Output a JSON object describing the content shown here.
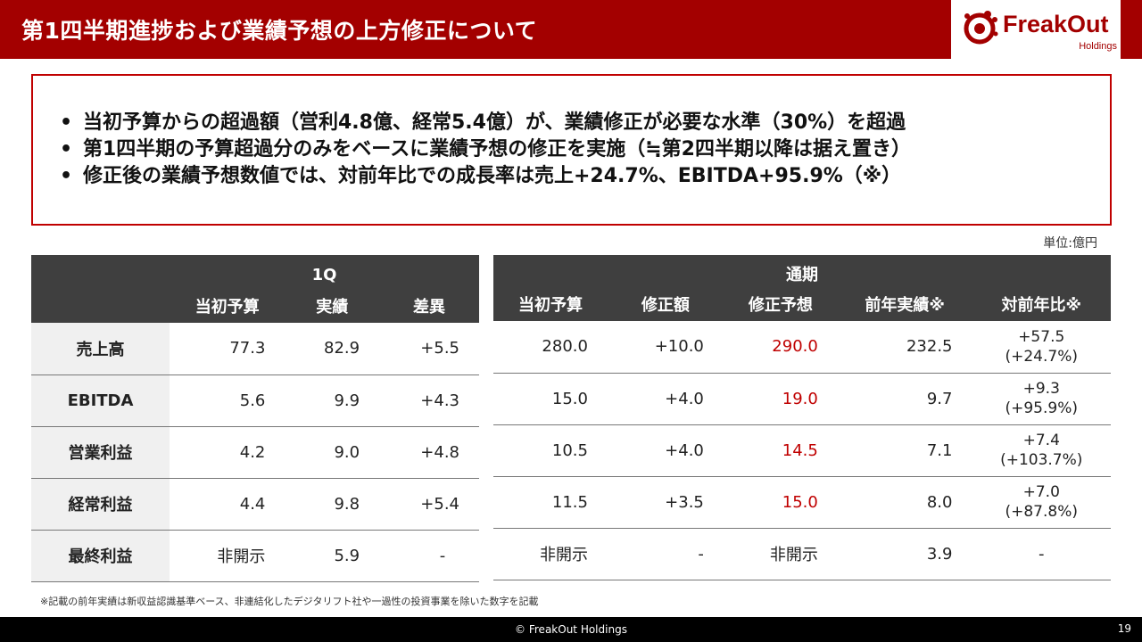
{
  "header": {
    "title": "第1四半期進捗および業績予想の上方修正について",
    "logo_name": "FreakOut",
    "logo_sub": "Holdings"
  },
  "summary": {
    "bullets": [
      "当初予算からの超過額（営利4.8億、経常5.4億）が、業績修正が必要な水準（30%）を超過",
      "第1四半期の予算超過分のみをベースに業績予想の修正を実施（≒第2四半期以降は据え置き）",
      "修正後の業績予想数値では、対前年比での成長率は売上+24.7%、EBITDA+95.9%（※）"
    ]
  },
  "unit": "単位:億円",
  "q1": {
    "group": "1Q",
    "headers": [
      "当初予算",
      "実績",
      "差異"
    ],
    "rows": [
      {
        "label": "売上高",
        "budget": "77.3",
        "actual": "82.9",
        "diff": "+5.5"
      },
      {
        "label": "EBITDA",
        "budget": "5.6",
        "actual": "9.9",
        "diff": "+4.3"
      },
      {
        "label": "営業利益",
        "budget": "4.2",
        "actual": "9.0",
        "diff": "+4.8"
      },
      {
        "label": "経常利益",
        "budget": "4.4",
        "actual": "9.8",
        "diff": "+5.4"
      },
      {
        "label": "最終利益",
        "budget": "非開示",
        "actual": "5.9",
        "diff": "-"
      }
    ]
  },
  "fy": {
    "group": "通期",
    "headers": [
      "当初予算",
      "修正額",
      "修正予想",
      "前年実績※",
      "対前年比※"
    ],
    "rows": [
      {
        "budget": "280.0",
        "revision": "+10.0",
        "revised": "290.0",
        "prior": "232.5",
        "yoy": "+57.5",
        "yoy_pct": "(+24.7%)"
      },
      {
        "budget": "15.0",
        "revision": "+4.0",
        "revised": "19.0",
        "prior": "9.7",
        "yoy": "+9.3",
        "yoy_pct": "(+95.9%)"
      },
      {
        "budget": "10.5",
        "revision": "+4.0",
        "revised": "14.5",
        "prior": "7.1",
        "yoy": "+7.4",
        "yoy_pct": "(+103.7%)"
      },
      {
        "budget": "11.5",
        "revision": "+3.5",
        "revised": "15.0",
        "prior": "8.0",
        "yoy": "+7.0",
        "yoy_pct": "(+87.8%)"
      },
      {
        "budget": "非開示",
        "revision": "-",
        "revised": "非開示",
        "prior": "3.9",
        "yoy": "-",
        "yoy_pct": ""
      }
    ]
  },
  "footnote": "※記載の前年実績は新収益認識基準ベース、非連結化したデジタリフト社や一過性の投資事業を除いた数字を記載",
  "footer": {
    "copyright": "© FreakOut Holdings",
    "page": "19"
  }
}
